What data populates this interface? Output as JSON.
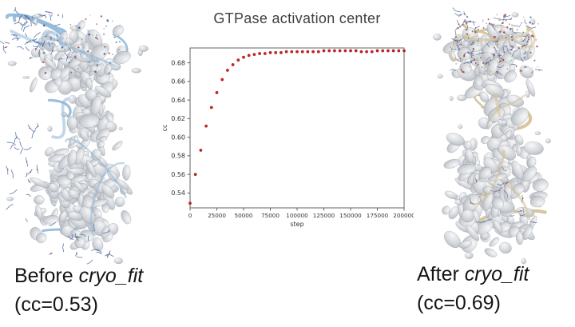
{
  "title": "GTPase activation center",
  "captions": {
    "before": {
      "prefix": "Before ",
      "program": "cryo_fit",
      "cc_line": "(cc=0.53)"
    },
    "after": {
      "prefix": "After ",
      "program": "cryo_fit",
      "cc_line": "(cc=0.69)"
    }
  },
  "molecules": {
    "before": {
      "label": "cryo-EM density map with unfitted atomic model (blue ribbons protruding from gray density)",
      "density_color": "#d7dade",
      "ribbon_color": "#8fb8d8",
      "stick_color": "#3f5f96",
      "accent_color": "#a44a38"
    },
    "after": {
      "label": "cryo-EM density map with fitted atomic model (tan ribbons inside gray density)",
      "density_color": "#d9dbde",
      "ribbon_color": "#d3bf92",
      "stick_color": "#5a6fa0",
      "accent_color": "#a44a38"
    }
  },
  "chart_data": {
    "type": "scatter",
    "title": "",
    "xlabel": "step",
    "ylabel": "cc",
    "legend": null,
    "grid": false,
    "marker_color": "#cc2222",
    "axis_color": "#555555",
    "tick_label_color": "#333333",
    "xlim": [
      0,
      200000
    ],
    "ylim": [
      0.524,
      0.696
    ],
    "xticks": [
      0,
      25000,
      50000,
      75000,
      100000,
      125000,
      150000,
      175000,
      200000
    ],
    "yticks": [
      0.54,
      0.56,
      0.58,
      0.6,
      0.62,
      0.64,
      0.66,
      0.68
    ],
    "x": [
      0,
      5000,
      10000,
      15000,
      20000,
      25000,
      30000,
      35000,
      40000,
      45000,
      50000,
      55000,
      60000,
      65000,
      70000,
      75000,
      80000,
      85000,
      90000,
      95000,
      100000,
      105000,
      110000,
      115000,
      120000,
      125000,
      130000,
      135000,
      140000,
      145000,
      150000,
      155000,
      160000,
      165000,
      170000,
      175000,
      180000,
      185000,
      190000,
      195000,
      200000
    ],
    "y": [
      0.529,
      0.56,
      0.586,
      0.612,
      0.632,
      0.648,
      0.662,
      0.672,
      0.678,
      0.683,
      0.686,
      0.688,
      0.689,
      0.69,
      0.69,
      0.691,
      0.691,
      0.691,
      0.692,
      0.692,
      0.692,
      0.692,
      0.692,
      0.692,
      0.692,
      0.693,
      0.693,
      0.693,
      0.693,
      0.693,
      0.693,
      0.693,
      0.692,
      0.692,
      0.692,
      0.693,
      0.693,
      0.693,
      0.693,
      0.693,
      0.693
    ]
  }
}
